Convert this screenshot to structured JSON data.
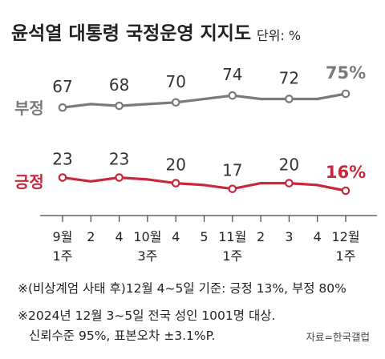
{
  "header": {
    "title": "윤석열 대통령 국정운영 지지도",
    "unit": "단위: %"
  },
  "chart_data": {
    "type": "line",
    "categories": [
      "9월 1주",
      "2",
      "4",
      "10월 3주",
      "4",
      "5",
      "11월 1주",
      "2",
      "3",
      "4",
      "12월 1주"
    ],
    "x_labels": [
      {
        "line1": "9월",
        "line2": "1주"
      },
      {
        "line1": "2",
        "line2": ""
      },
      {
        "line1": "4",
        "line2": ""
      },
      {
        "line1": "10월",
        "line2": "3주"
      },
      {
        "line1": "4",
        "line2": ""
      },
      {
        "line1": "5",
        "line2": ""
      },
      {
        "line1": "11월",
        "line2": "1주"
      },
      {
        "line1": "2",
        "line2": ""
      },
      {
        "line1": "3",
        "line2": ""
      },
      {
        "line1": "4",
        "line2": ""
      },
      {
        "line1": "12월",
        "line2": "1주"
      }
    ],
    "series": [
      {
        "name": "부정",
        "color": "#7a7a7a",
        "values": [
          67,
          69,
          68,
          69,
          70,
          72,
          74,
          72,
          72,
          72,
          75
        ],
        "labels": [
          "67",
          "",
          "68",
          "",
          "70",
          "",
          "74",
          "",
          "72",
          "",
          "75%"
        ]
      },
      {
        "name": "긍정",
        "color": "#c8283c",
        "values": [
          23,
          21,
          23,
          22,
          20,
          19,
          17,
          20,
          20,
          19,
          16
        ],
        "labels": [
          "23",
          "",
          "23",
          "",
          "20",
          "",
          "17",
          "",
          "20",
          "",
          "16%"
        ]
      }
    ]
  },
  "notes": {
    "line1": "※(비상계엄 사태 후)12월 4~5일 기준: 긍정 13%, 부정 80%",
    "line2": "※2024년 12월 3~5일 전국 성인 1001명 대상.",
    "line3": "신뢰수준 95%, 표본오차 ±3.1%P.",
    "source": "자료=한국갤럽"
  }
}
